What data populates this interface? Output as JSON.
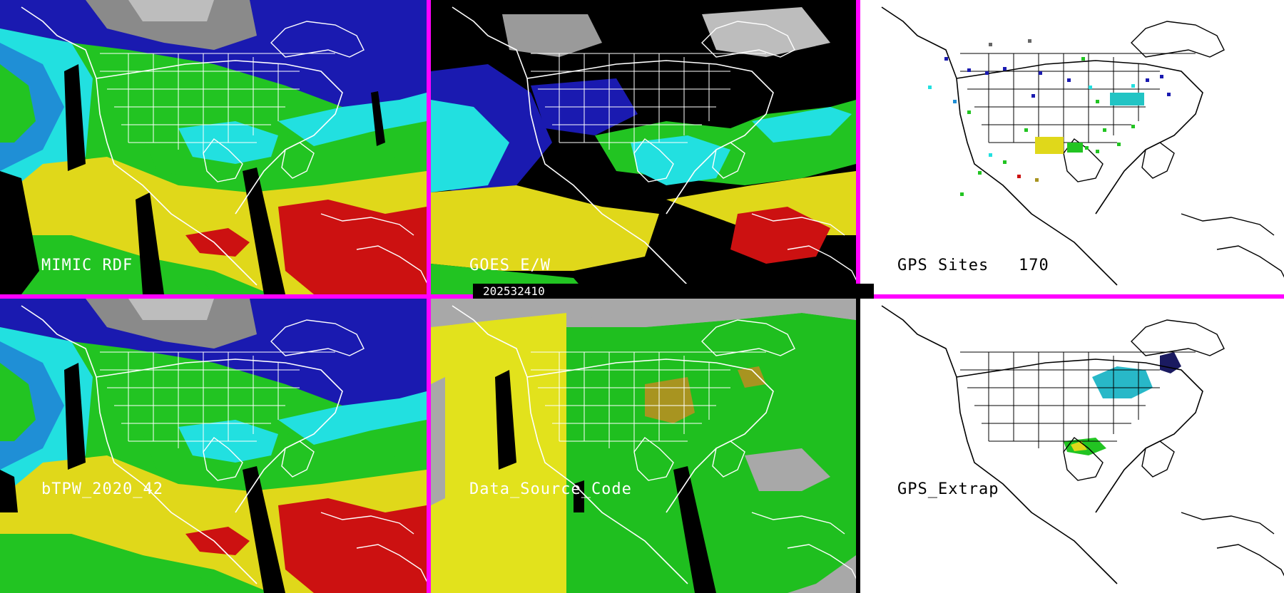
{
  "panels": {
    "mimic_rdf": {
      "label": "MIMIC RDF"
    },
    "goes_ew": {
      "label": "GOES E/W"
    },
    "gps_sites": {
      "label": "GPS Sites",
      "count": "170"
    },
    "btpw": {
      "label": "bTPW_2020_42"
    },
    "data_source_code": {
      "label": "Data_Source_Code"
    },
    "gps_extrap": {
      "label": "GPS_Extrap"
    }
  },
  "timestamp": "202532410",
  "colors": {
    "divider": "#ff00ff",
    "tpw_dry": "#1a1ab0",
    "tpw_low": "#1f8fd6",
    "tpw_mid": "#22e0e0",
    "tpw_green": "#22c422",
    "tpw_yellow": "#e0d81a",
    "tpw_red": "#cc1111",
    "cloud_gray": "#a8a8a8",
    "source_yellow": "#e2e21c",
    "source_green": "#1fbf1f",
    "source_olive": "#a89420"
  }
}
